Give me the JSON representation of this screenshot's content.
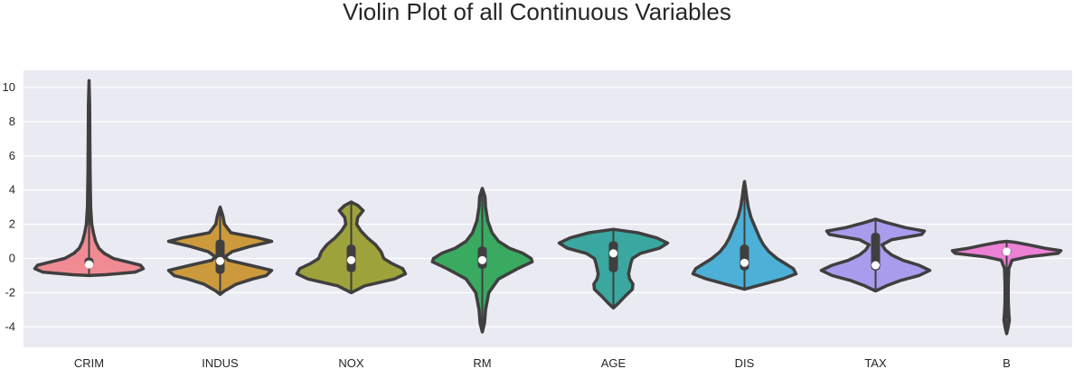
{
  "chart_data": {
    "type": "violin",
    "title": "Violin Plot of all Continuous Variables",
    "xlabel": "",
    "ylabel": "",
    "ylim": [
      -5.2,
      11.0
    ],
    "yticks": [
      -4,
      -2,
      0,
      2,
      4,
      6,
      8,
      10
    ],
    "grid": true,
    "categories": [
      "CRIM",
      "INDUS",
      "NOX",
      "RM",
      "AGE",
      "DIS",
      "TAX",
      "B"
    ],
    "colors": {
      "CRIM": "#f08b93",
      "INDUS": "#cc9a3d",
      "NOX": "#9da33a",
      "RM": "#3aaa61",
      "AGE": "#3aa8a0",
      "DIS": "#4db0d6",
      "TAX": "#a99ced",
      "B": "#ec80d4"
    },
    "series": [
      {
        "name": "CRIM",
        "min": -1.0,
        "q1": -0.45,
        "median": -0.35,
        "q3": 0.05,
        "max": 10.4,
        "density": [
          [
            -1.0,
            0.0
          ],
          [
            -0.95,
            0.3
          ],
          [
            -0.8,
            0.85
          ],
          [
            -0.6,
            1.0
          ],
          [
            -0.4,
            0.95
          ],
          [
            -0.2,
            0.7
          ],
          [
            0.0,
            0.45
          ],
          [
            0.3,
            0.28
          ],
          [
            0.6,
            0.18
          ],
          [
            1.0,
            0.12
          ],
          [
            1.5,
            0.08
          ],
          [
            2.0,
            0.05
          ],
          [
            3.0,
            0.03
          ],
          [
            4.0,
            0.025
          ],
          [
            5.0,
            0.02
          ],
          [
            7.0,
            0.015
          ],
          [
            9.0,
            0.012
          ],
          [
            10.4,
            0.0
          ]
        ]
      },
      {
        "name": "INDUS",
        "min": -2.1,
        "q1": -0.9,
        "median": -0.15,
        "q3": 1.1,
        "max": 3.0,
        "density": [
          [
            -2.1,
            0.0
          ],
          [
            -1.9,
            0.08
          ],
          [
            -1.5,
            0.3
          ],
          [
            -1.2,
            0.6
          ],
          [
            -1.0,
            0.85
          ],
          [
            -0.7,
            0.95
          ],
          [
            -0.4,
            0.55
          ],
          [
            -0.1,
            0.15
          ],
          [
            0.1,
            0.09
          ],
          [
            0.4,
            0.22
          ],
          [
            0.7,
            0.55
          ],
          [
            1.0,
            0.95
          ],
          [
            1.2,
            0.7
          ],
          [
            1.5,
            0.2
          ],
          [
            2.0,
            0.08
          ],
          [
            2.5,
            0.05
          ],
          [
            3.0,
            0.0
          ]
        ]
      },
      {
        "name": "NOX",
        "min": -2.0,
        "q1": -0.8,
        "median": -0.1,
        "q3": 0.8,
        "max": 3.3,
        "density": [
          [
            -2.0,
            0.0
          ],
          [
            -1.6,
            0.25
          ],
          [
            -1.2,
            0.8
          ],
          [
            -0.9,
            1.0
          ],
          [
            -0.6,
            0.95
          ],
          [
            -0.3,
            0.75
          ],
          [
            0.0,
            0.6
          ],
          [
            0.4,
            0.55
          ],
          [
            0.8,
            0.45
          ],
          [
            1.2,
            0.3
          ],
          [
            1.6,
            0.18
          ],
          [
            2.0,
            0.1
          ],
          [
            2.4,
            0.12
          ],
          [
            2.8,
            0.22
          ],
          [
            3.1,
            0.12
          ],
          [
            3.3,
            0.0
          ]
        ]
      },
      {
        "name": "RM",
        "min": -4.3,
        "q1": -0.6,
        "median": -0.1,
        "q3": 0.7,
        "max": 4.1,
        "density": [
          [
            -4.3,
            0.0
          ],
          [
            -3.8,
            0.04
          ],
          [
            -3.0,
            0.06
          ],
          [
            -2.0,
            0.12
          ],
          [
            -1.2,
            0.3
          ],
          [
            -0.6,
            0.65
          ],
          [
            -0.2,
            0.92
          ],
          [
            0.0,
            0.9
          ],
          [
            0.3,
            0.75
          ],
          [
            0.6,
            0.5
          ],
          [
            1.0,
            0.3
          ],
          [
            1.5,
            0.18
          ],
          [
            2.2,
            0.1
          ],
          [
            3.0,
            0.06
          ],
          [
            3.6,
            0.05
          ],
          [
            4.1,
            0.0
          ]
        ]
      },
      {
        "name": "AGE",
        "min": -2.9,
        "q1": -0.8,
        "median": 0.3,
        "q3": 1.0,
        "max": 1.7,
        "density": [
          [
            -2.9,
            0.0
          ],
          [
            -2.6,
            0.1
          ],
          [
            -2.2,
            0.22
          ],
          [
            -1.8,
            0.35
          ],
          [
            -1.5,
            0.36
          ],
          [
            -1.2,
            0.3
          ],
          [
            -0.9,
            0.28
          ],
          [
            -0.6,
            0.3
          ],
          [
            -0.3,
            0.32
          ],
          [
            0.0,
            0.35
          ],
          [
            0.3,
            0.5
          ],
          [
            0.6,
            0.85
          ],
          [
            0.9,
            1.0
          ],
          [
            1.2,
            0.8
          ],
          [
            1.5,
            0.45
          ],
          [
            1.7,
            0.0
          ]
        ]
      },
      {
        "name": "DIS",
        "min": -1.8,
        "q1": -0.7,
        "median": -0.25,
        "q3": 0.8,
        "max": 4.5,
        "density": [
          [
            -1.8,
            0.0
          ],
          [
            -1.5,
            0.35
          ],
          [
            -1.2,
            0.7
          ],
          [
            -0.9,
            0.95
          ],
          [
            -0.6,
            0.9
          ],
          [
            -0.3,
            0.75
          ],
          [
            0.0,
            0.6
          ],
          [
            0.4,
            0.45
          ],
          [
            0.8,
            0.35
          ],
          [
            1.2,
            0.28
          ],
          [
            1.8,
            0.2
          ],
          [
            2.4,
            0.12
          ],
          [
            3.0,
            0.07
          ],
          [
            3.6,
            0.04
          ],
          [
            4.1,
            0.02
          ],
          [
            4.5,
            0.0
          ]
        ]
      },
      {
        "name": "TAX",
        "min": -1.9,
        "q1": -0.7,
        "median": -0.4,
        "q3": 1.5,
        "max": 2.3,
        "density": [
          [
            -1.9,
            0.0
          ],
          [
            -1.6,
            0.2
          ],
          [
            -1.3,
            0.45
          ],
          [
            -1.0,
            0.8
          ],
          [
            -0.7,
            1.0
          ],
          [
            -0.4,
            0.8
          ],
          [
            -0.1,
            0.5
          ],
          [
            0.2,
            0.3
          ],
          [
            0.5,
            0.18
          ],
          [
            0.8,
            0.12
          ],
          [
            1.1,
            0.3
          ],
          [
            1.4,
            0.85
          ],
          [
            1.6,
            0.9
          ],
          [
            1.8,
            0.55
          ],
          [
            2.1,
            0.2
          ],
          [
            2.3,
            0.0
          ]
        ]
      },
      {
        "name": "B",
        "min": -4.4,
        "q1": 0.2,
        "median": 0.4,
        "q3": 0.55,
        "max": 1.0,
        "density": [
          [
            -4.4,
            0.0
          ],
          [
            -4.0,
            0.03
          ],
          [
            -3.6,
            0.05
          ],
          [
            -3.2,
            0.04
          ],
          [
            -2.5,
            0.03
          ],
          [
            -1.5,
            0.03
          ],
          [
            -0.6,
            0.04
          ],
          [
            -0.1,
            0.1
          ],
          [
            0.1,
            0.4
          ],
          [
            0.3,
            0.95
          ],
          [
            0.45,
            1.0
          ],
          [
            0.6,
            0.7
          ],
          [
            0.8,
            0.4
          ],
          [
            0.95,
            0.15
          ],
          [
            1.0,
            0.0
          ]
        ]
      }
    ]
  }
}
